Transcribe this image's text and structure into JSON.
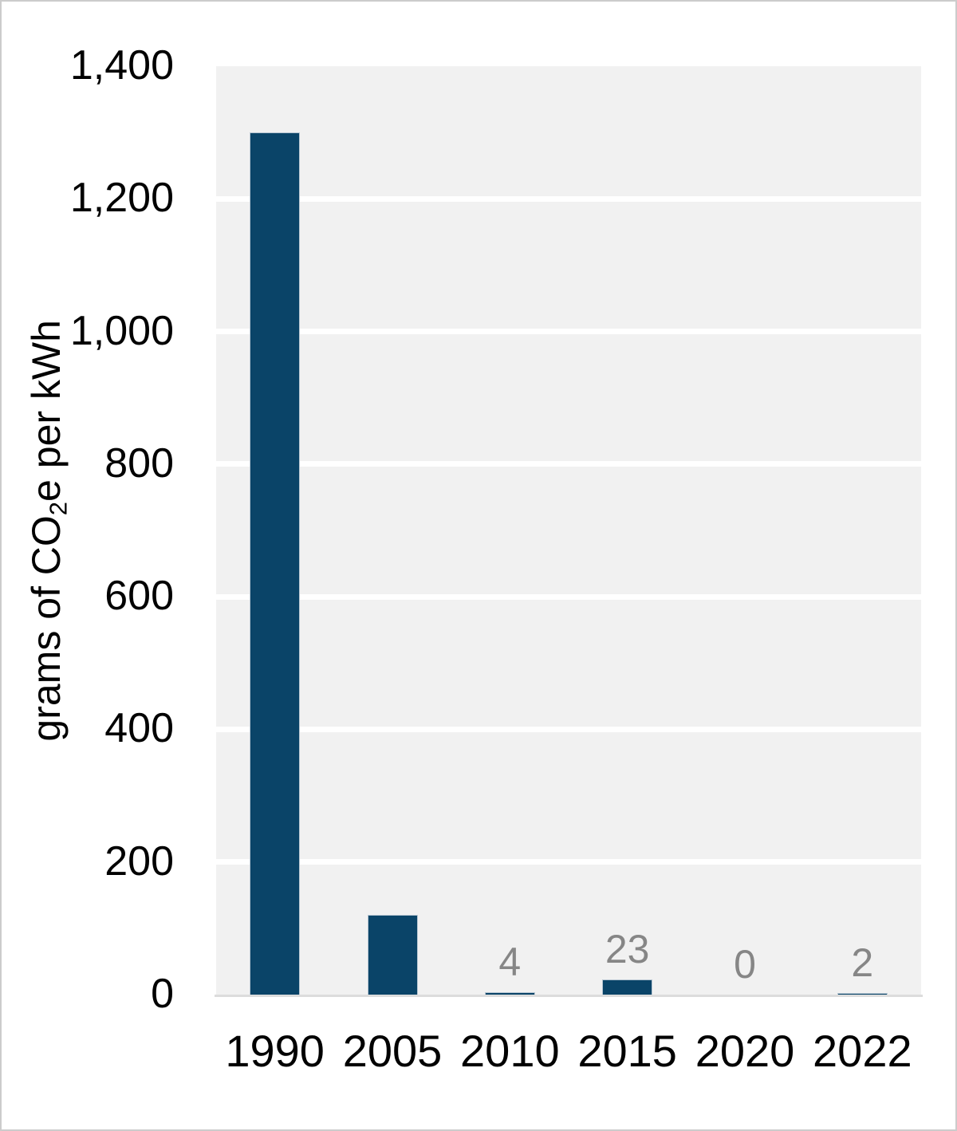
{
  "y_axis_title": {
    "prefix": "grams of CO",
    "subscript": "2",
    "suffix": "e per kWh"
  },
  "chart_data": {
    "type": "bar",
    "title": "",
    "xlabel": "",
    "ylabel": "grams of CO2e per kWh",
    "categories": [
      "1990",
      "2005",
      "2010",
      "2015",
      "2020",
      "2022"
    ],
    "values": [
      1300,
      120,
      4,
      23,
      0,
      2
    ],
    "bar_labels": [
      "",
      "",
      "4",
      "23",
      "0",
      "2"
    ],
    "ylim": [
      0,
      1400
    ],
    "ytick_step": 200,
    "yticks": [
      {
        "value": 1400,
        "label": "1,400"
      },
      {
        "value": 1200,
        "label": "1,200"
      },
      {
        "value": 1000,
        "label": "1,000"
      },
      {
        "value": 800,
        "label": "800"
      },
      {
        "value": 600,
        "label": "600"
      },
      {
        "value": 400,
        "label": "400"
      },
      {
        "value": 200,
        "label": "200"
      },
      {
        "value": 0,
        "label": "0"
      }
    ],
    "grid": true,
    "legend": false,
    "colors": {
      "bar": "#0a4468",
      "bar_border": "#b7c6d2",
      "plot_background": "#f1f1f1",
      "gridline": "#ffffff",
      "axis_line": "#dcdcdc",
      "tick_label": "#000000",
      "data_label": "#868686"
    }
  }
}
